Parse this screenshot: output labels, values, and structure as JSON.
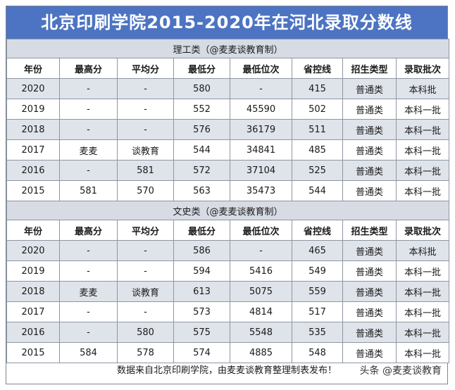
{
  "title": "北京印刷学院2015-2020年在河北录取分数线",
  "columns": [
    "年份",
    "最高分",
    "平均分",
    "最低分",
    "最低位次",
    "省控线",
    "招生类型",
    "录取批次"
  ],
  "sections": [
    {
      "label": "理工类（@麦麦谈教育制）",
      "rows": [
        [
          "2020",
          "-",
          "-",
          "580",
          "-",
          "415",
          "普通类",
          "本科批"
        ],
        [
          "2019",
          "-",
          "-",
          "552",
          "45590",
          "502",
          "普通类",
          "本科一批"
        ],
        [
          "2018",
          "-",
          "-",
          "576",
          "36179",
          "511",
          "普通类",
          "本科一批"
        ],
        [
          "2017",
          "麦麦",
          "谈教育",
          "544",
          "34841",
          "485",
          "普通类",
          "本科一批"
        ],
        [
          "2016",
          "-",
          "581",
          "572",
          "37104",
          "525",
          "普通类",
          "本科一批"
        ],
        [
          "2015",
          "581",
          "570",
          "563",
          "35473",
          "544",
          "普通类",
          "本科一批"
        ]
      ]
    },
    {
      "label": "文史类（@麦麦谈教育制）",
      "rows": [
        [
          "2020",
          "-",
          "-",
          "586",
          "-",
          "465",
          "普通类",
          "本科批"
        ],
        [
          "2019",
          "-",
          "-",
          "594",
          "5416",
          "549",
          "普通类",
          "本科一批"
        ],
        [
          "2018",
          "麦麦",
          "谈教育",
          "613",
          "5075",
          "559",
          "普通类",
          "本科一批"
        ],
        [
          "2017",
          "-",
          "-",
          "573",
          "4814",
          "517",
          "普通类",
          "本科一批"
        ],
        [
          "2016",
          "-",
          "580",
          "575",
          "5548",
          "535",
          "普通类",
          "本科一批"
        ],
        [
          "2015",
          "584",
          "578",
          "574",
          "4885",
          "548",
          "普通类",
          "本科一批"
        ]
      ]
    }
  ],
  "footer": "数据来自北京印刷学院，由麦麦谈教育整理制表发布！",
  "watermark": "头条 @麦麦谈教育"
}
